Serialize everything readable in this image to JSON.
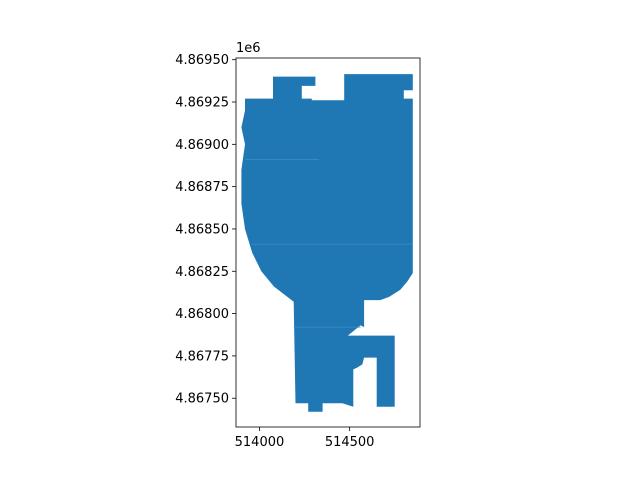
{
  "chart_data": {
    "type": "map",
    "title": "",
    "xlabel": "",
    "ylabel": "",
    "y_offset_label": "1e6",
    "xlim": [
      513870,
      514890
    ],
    "ylim": [
      4867330,
      4869510
    ],
    "x_ticks": [
      {
        "value": 514000,
        "label": "514000"
      },
      {
        "value": 514500,
        "label": "514500"
      }
    ],
    "y_ticks": [
      {
        "value": 4867500,
        "label": "4.86750"
      },
      {
        "value": 4867750,
        "label": "4.86775"
      },
      {
        "value": 4868000,
        "label": "4.86800"
      },
      {
        "value": 4868250,
        "label": "4.86825"
      },
      {
        "value": 4868500,
        "label": "4.86850"
      },
      {
        "value": 4868750,
        "label": "4.86875"
      },
      {
        "value": 4869000,
        "label": "4.86900"
      },
      {
        "value": 4869250,
        "label": "4.86925"
      },
      {
        "value": 4869500,
        "label": "4.86950"
      }
    ],
    "grid": false,
    "colors": {
      "fill": "#1f77b4",
      "internal_boundary": "#3a8cc4",
      "axis": "#000000"
    },
    "polygons": [
      {
        "name": "",
        "points": [
          [
            513920,
            4869270
          ],
          [
            514075,
            4869270
          ],
          [
            514075,
            4869400
          ],
          [
            514310,
            4869400
          ],
          [
            514310,
            4869345
          ],
          [
            514235,
            4869345
          ],
          [
            514235,
            4869270
          ],
          [
            514290,
            4869270
          ],
          [
            514290,
            4869260
          ],
          [
            514470,
            4869260
          ],
          [
            514470,
            4869415
          ],
          [
            514850,
            4869415
          ],
          [
            514850,
            4869320
          ],
          [
            514800,
            4869320
          ],
          [
            514800,
            4869270
          ],
          [
            514850,
            4869270
          ],
          [
            514850,
            4868240
          ],
          [
            514820,
            4868190
          ],
          [
            514780,
            4868140
          ],
          [
            514720,
            4868100
          ],
          [
            514670,
            4868080
          ],
          [
            514580,
            4868080
          ],
          [
            514580,
            4867920
          ],
          [
            514560,
            4867930
          ],
          [
            514490,
            4867870
          ],
          [
            514750,
            4867870
          ],
          [
            514750,
            4867450
          ],
          [
            514650,
            4867450
          ],
          [
            514650,
            4867740
          ],
          [
            514580,
            4867740
          ],
          [
            514570,
            4867700
          ],
          [
            514540,
            4867680
          ],
          [
            514520,
            4867670
          ],
          [
            514520,
            4867450
          ],
          [
            514460,
            4867470
          ],
          [
            514350,
            4867470
          ],
          [
            514350,
            4867420
          ],
          [
            514270,
            4867420
          ],
          [
            514270,
            4867470
          ],
          [
            514200,
            4867470
          ],
          [
            514190,
            4868070
          ],
          [
            514080,
            4868160
          ],
          [
            514010,
            4868250
          ],
          [
            513960,
            4868360
          ],
          [
            513920,
            4868500
          ],
          [
            513900,
            4868650
          ],
          [
            513900,
            4868850
          ],
          [
            513920,
            4869000
          ],
          [
            513900,
            4869100
          ],
          [
            513920,
            4869200
          ]
        ]
      }
    ],
    "internal_boundaries": [
      [
        [
          513920,
          4868910
        ],
        [
          514330,
          4868910
        ]
      ],
      [
        [
          513960,
          4868410
        ],
        [
          514850,
          4868410
        ]
      ],
      [
        [
          514190,
          4867920
        ],
        [
          514560,
          4867920
        ]
      ]
    ]
  }
}
